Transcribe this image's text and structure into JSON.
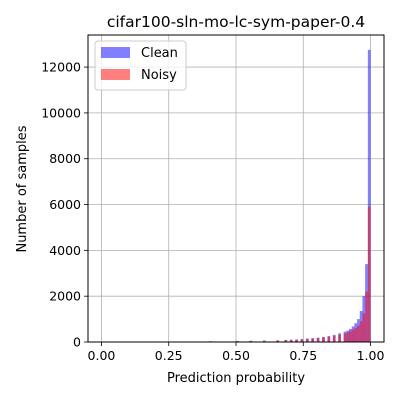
{
  "chart_data": {
    "type": "histogram",
    "title": "cifar100-sln-mo-lc-sym-paper-0.4",
    "xlabel": "Prediction probability",
    "ylabel": "Number of samples",
    "xlim": [
      -0.05,
      1.05
    ],
    "ylim": [
      0,
      13400
    ],
    "x_ticks": [
      "0.00",
      "0.25",
      "0.50",
      "0.75",
      "1.00"
    ],
    "y_ticks": [
      "0",
      "2000",
      "4000",
      "6000",
      "8000",
      "10000",
      "12000"
    ],
    "grid": true,
    "legend": {
      "position": "top-left"
    },
    "bin_width": 0.01,
    "series": [
      {
        "name": "Clean",
        "color": "#0000ff",
        "bins": [
          [
            0.22,
            10
          ],
          [
            0.3,
            20
          ],
          [
            0.4,
            30
          ],
          [
            0.5,
            40
          ],
          [
            0.55,
            50
          ],
          [
            0.6,
            60
          ],
          [
            0.65,
            70
          ],
          [
            0.68,
            90
          ],
          [
            0.7,
            100
          ],
          [
            0.72,
            110
          ],
          [
            0.74,
            130
          ],
          [
            0.76,
            150
          ],
          [
            0.78,
            170
          ],
          [
            0.8,
            190
          ],
          [
            0.82,
            220
          ],
          [
            0.84,
            260
          ],
          [
            0.86,
            310
          ],
          [
            0.88,
            380
          ],
          [
            0.9,
            450
          ],
          [
            0.91,
            500
          ],
          [
            0.92,
            570
          ],
          [
            0.93,
            680
          ],
          [
            0.94,
            820
          ],
          [
            0.95,
            1000
          ],
          [
            0.96,
            1350
          ],
          [
            0.97,
            2000
          ],
          [
            0.98,
            3400
          ],
          [
            0.99,
            12750
          ]
        ]
      },
      {
        "name": "Noisy",
        "color": "#ff0000",
        "bins": [
          [
            0.22,
            10
          ],
          [
            0.3,
            20
          ],
          [
            0.4,
            30
          ],
          [
            0.5,
            40
          ],
          [
            0.55,
            50
          ],
          [
            0.6,
            60
          ],
          [
            0.65,
            70
          ],
          [
            0.68,
            80
          ],
          [
            0.7,
            90
          ],
          [
            0.72,
            100
          ],
          [
            0.74,
            110
          ],
          [
            0.76,
            130
          ],
          [
            0.78,
            150
          ],
          [
            0.8,
            170
          ],
          [
            0.82,
            200
          ],
          [
            0.84,
            230
          ],
          [
            0.86,
            270
          ],
          [
            0.88,
            320
          ],
          [
            0.9,
            370
          ],
          [
            0.91,
            420
          ],
          [
            0.92,
            470
          ],
          [
            0.93,
            540
          ],
          [
            0.94,
            620
          ],
          [
            0.95,
            720
          ],
          [
            0.96,
            900
          ],
          [
            0.97,
            1250
          ],
          [
            0.98,
            2200
          ],
          [
            0.99,
            5900
          ]
        ]
      }
    ]
  }
}
